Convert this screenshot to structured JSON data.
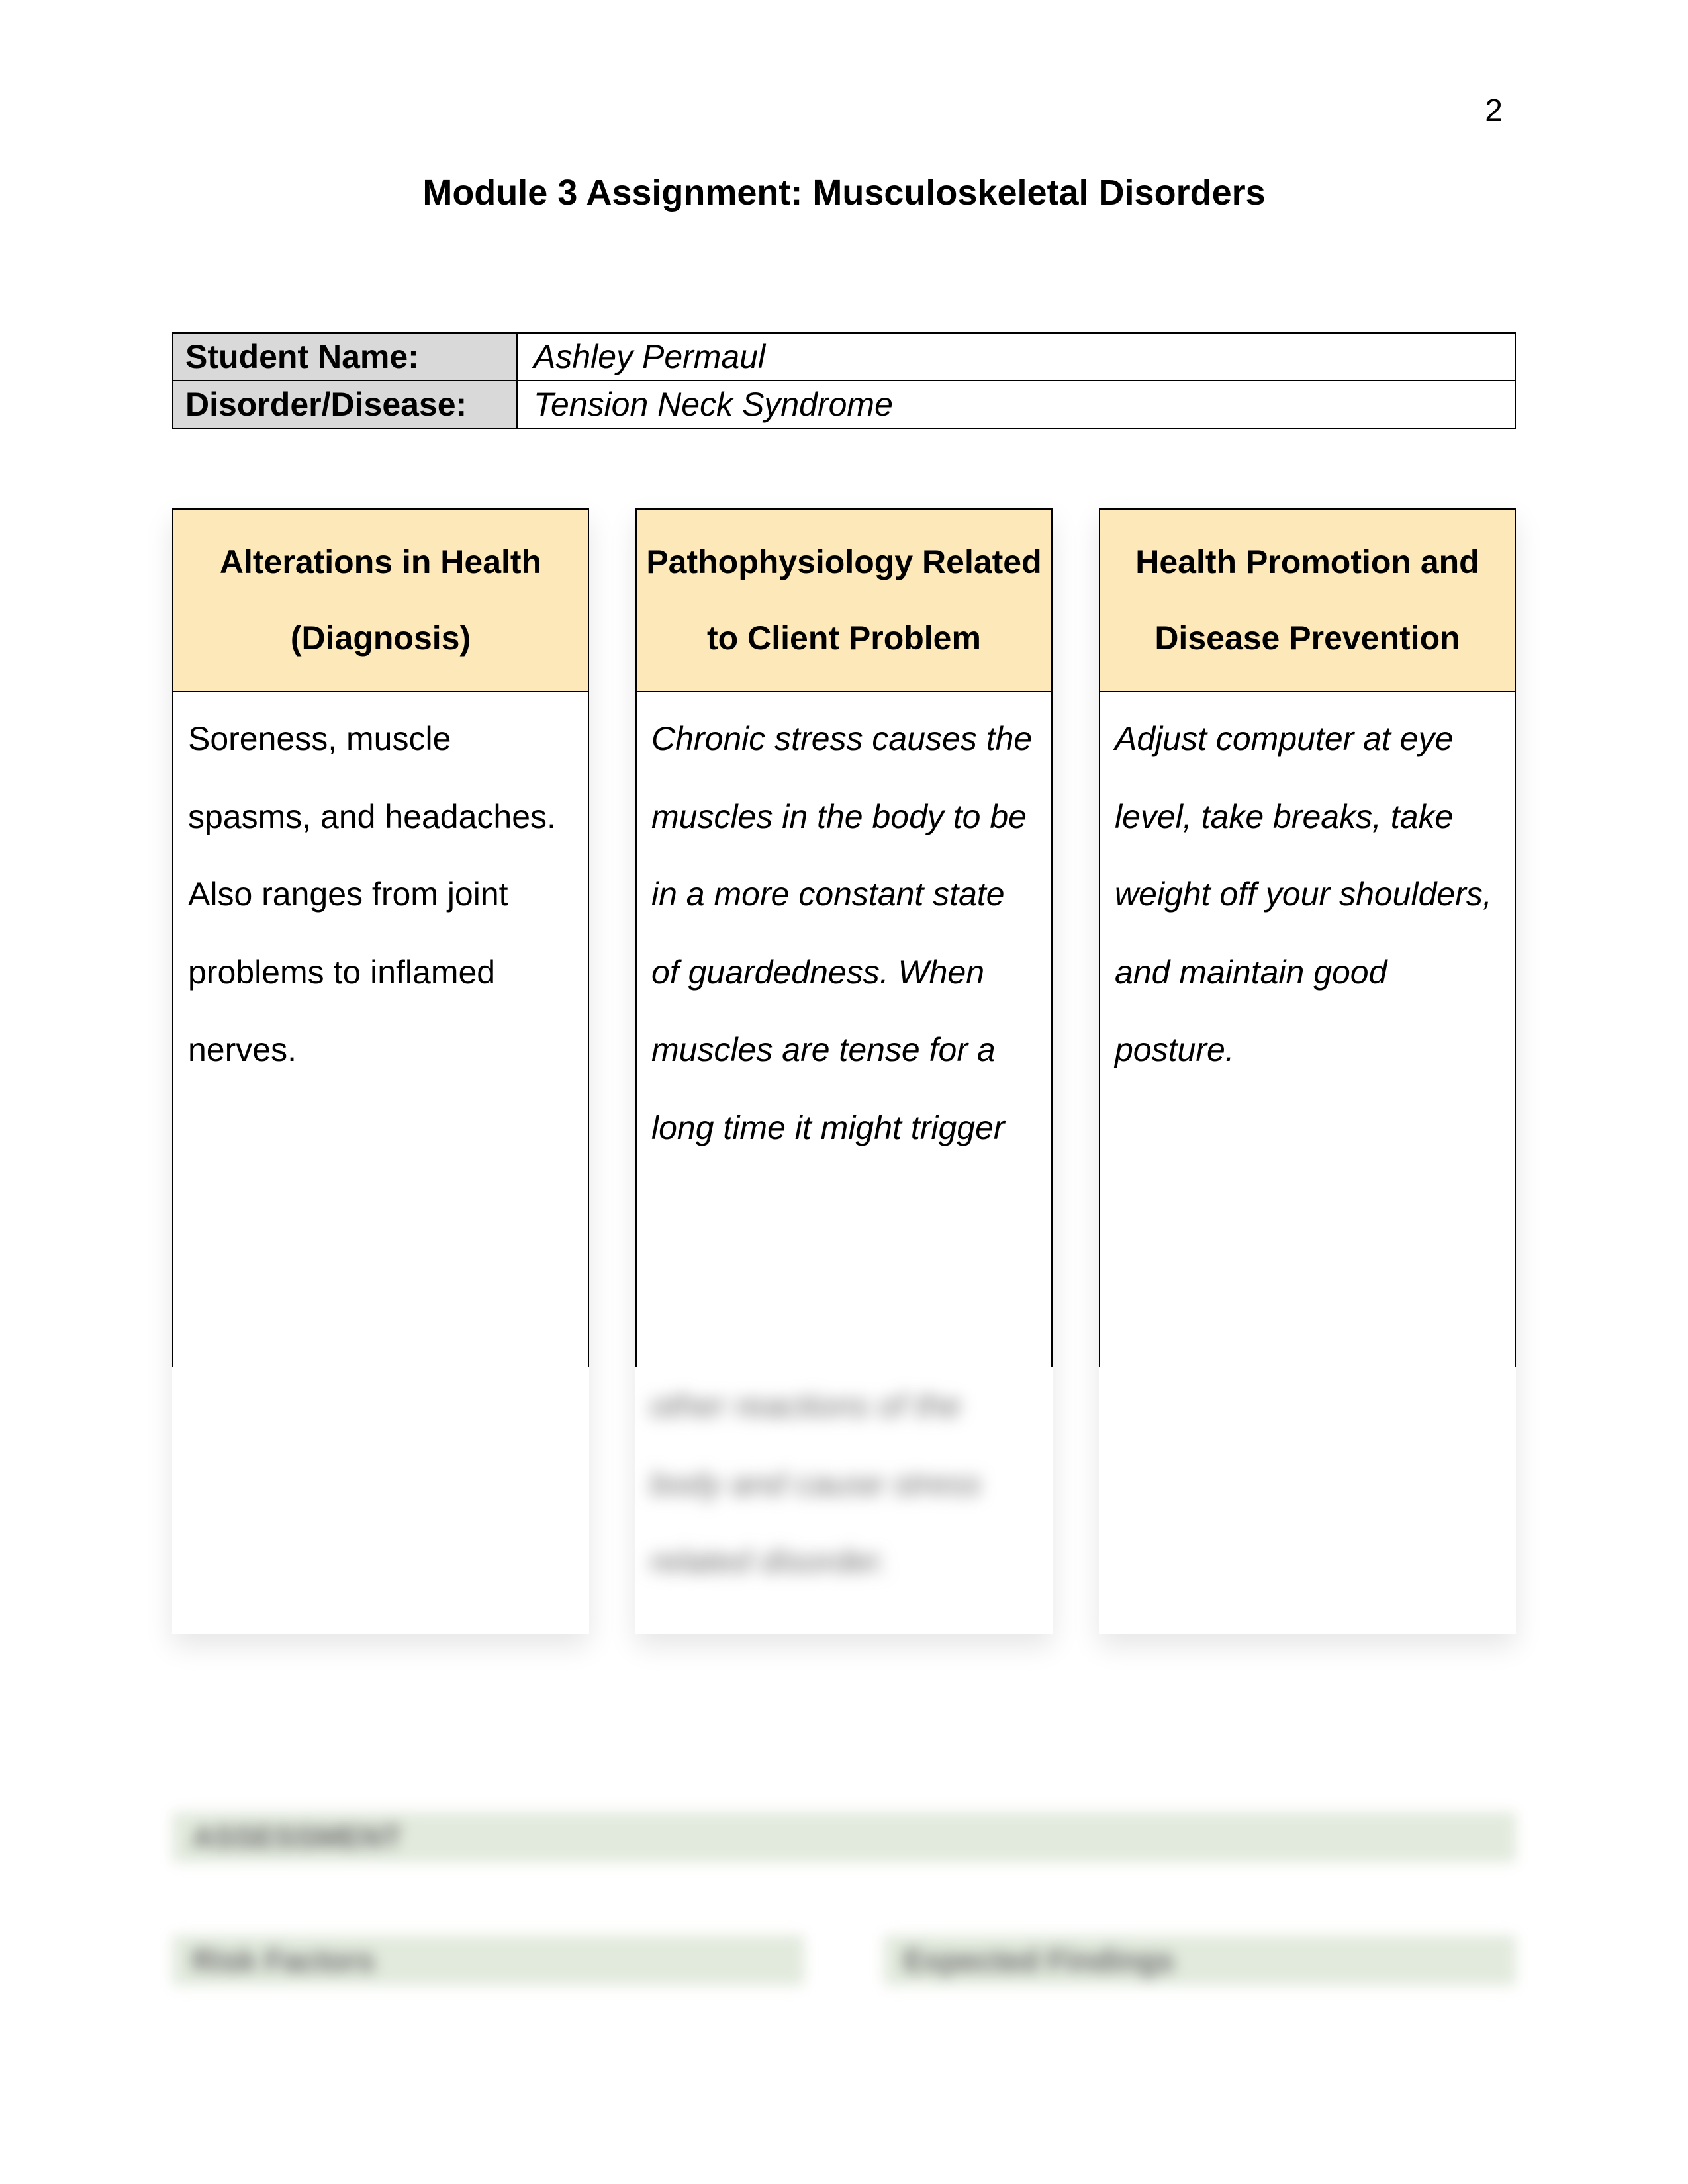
{
  "page_number": "2",
  "title": "Module 3 Assignment: Musculoskeletal Disorders",
  "info": {
    "student_label": "Student Name:",
    "student_value": "Ashley Permaul",
    "disorder_label": "Disorder/Disease:",
    "disorder_value": "Tension Neck Syndrome"
  },
  "columns": {
    "col1": {
      "header": "Alterations in Health (Diagnosis)",
      "body": "Soreness, muscle spasms, and headaches. Also ranges from joint problems to inflamed nerves.",
      "italic": false
    },
    "col2": {
      "header": "Pathophysiology Related to Client Problem",
      "body": "Chronic stress causes the muscles in the body to be in a more constant state of guardedness. When muscles are tense for a long time it might trigger",
      "blurred_tail": "other reactions of the body and cause stress related disorder.",
      "italic": true
    },
    "col3": {
      "header": "Health Promotion and Disease Prevention",
      "body": "Adjust computer at eye level, take breaks, take weight off your shoulders, and maintain good posture.",
      "italic": true
    }
  },
  "blurred_sections": {
    "bar1": "ASSESSMENT",
    "bar2_left": "Risk Factors",
    "bar2_right": "Expected Findings"
  },
  "colors": {
    "header_bg": "#fce8b8",
    "label_bg": "#d9d9d9",
    "blur_bar_bg": "#e2eadd",
    "border": "#000000",
    "text": "#000000"
  }
}
